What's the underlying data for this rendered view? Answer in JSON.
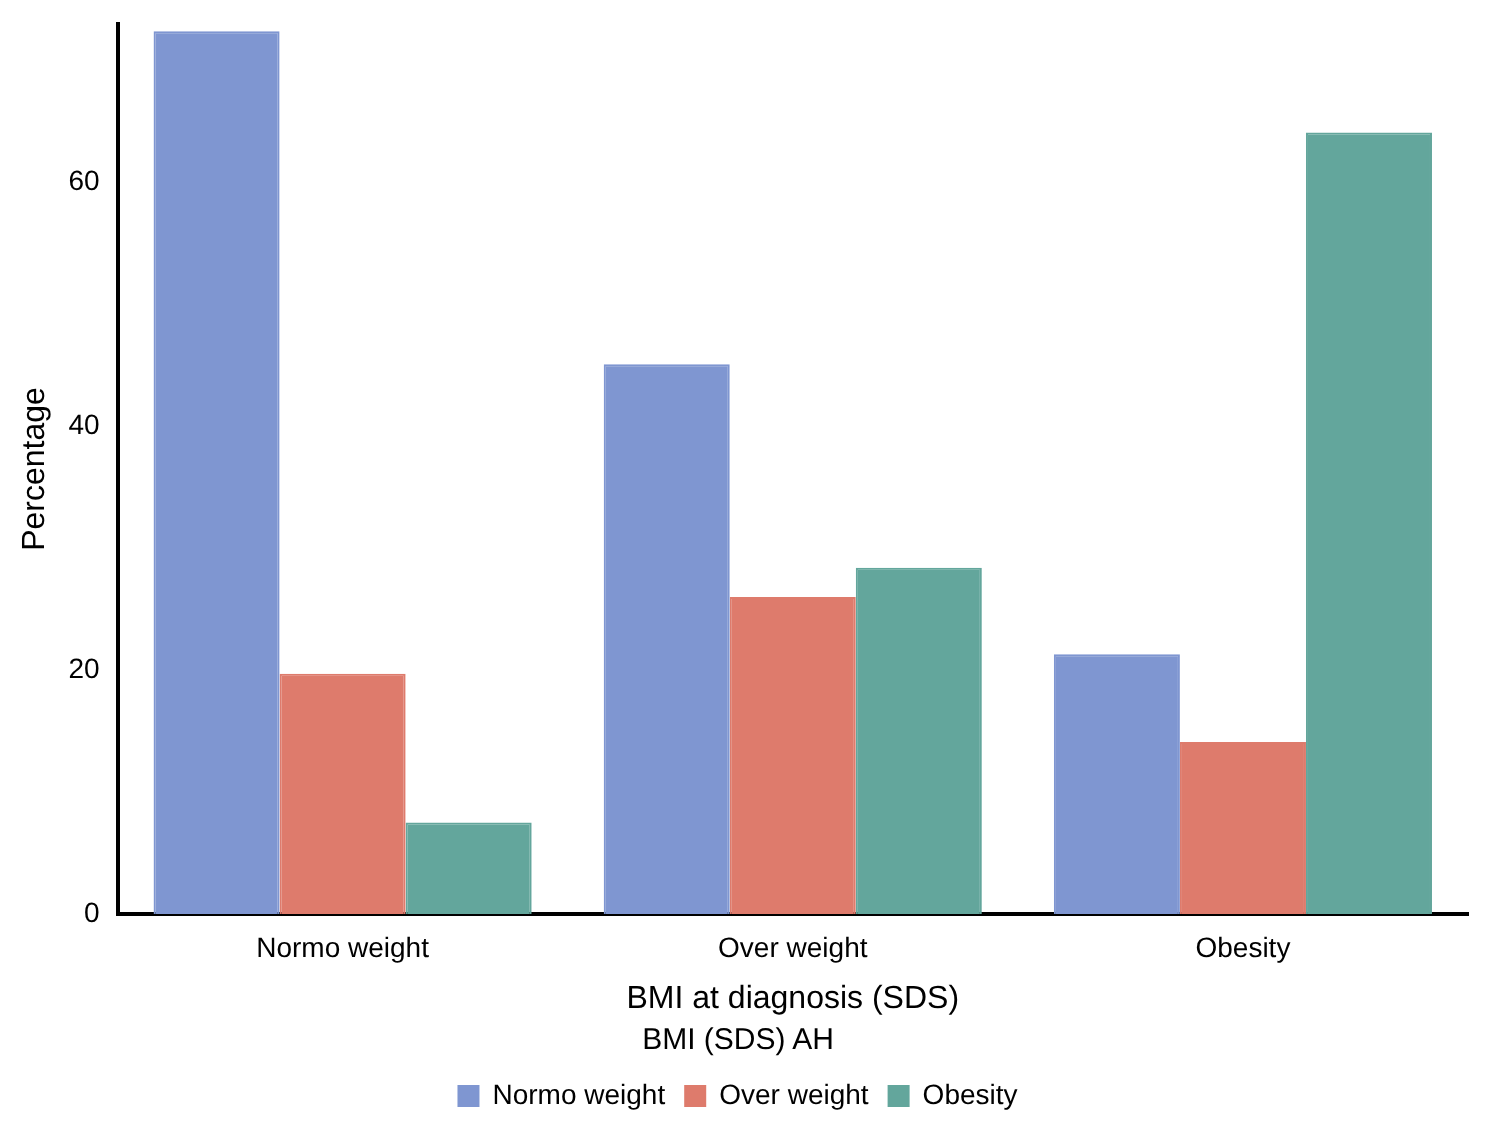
{
  "chart_data": {
    "type": "bar",
    "xlabel": "BMI at diagnosis (SDS)",
    "ylabel": "Percentage",
    "legend_title": "BMI (SDS) AH",
    "legend": "bottom",
    "grid": false,
    "categories": [
      "Normo weight",
      "Over weight",
      "Obesity"
    ],
    "series": [
      {
        "name": "Normo weight",
        "color": "#7f96d1",
        "values": [
          72.4,
          45.1,
          21.3
        ]
      },
      {
        "name": "Over weight",
        "color": "#de7b6c",
        "values": [
          19.7,
          26.0,
          14.1
        ]
      },
      {
        "name": "Obesity",
        "color": "#63a69c",
        "values": [
          7.5,
          28.4,
          64.1
        ]
      }
    ],
    "ylim": [
      0,
      73
    ],
    "yticks": [
      0,
      20,
      40,
      60
    ]
  }
}
